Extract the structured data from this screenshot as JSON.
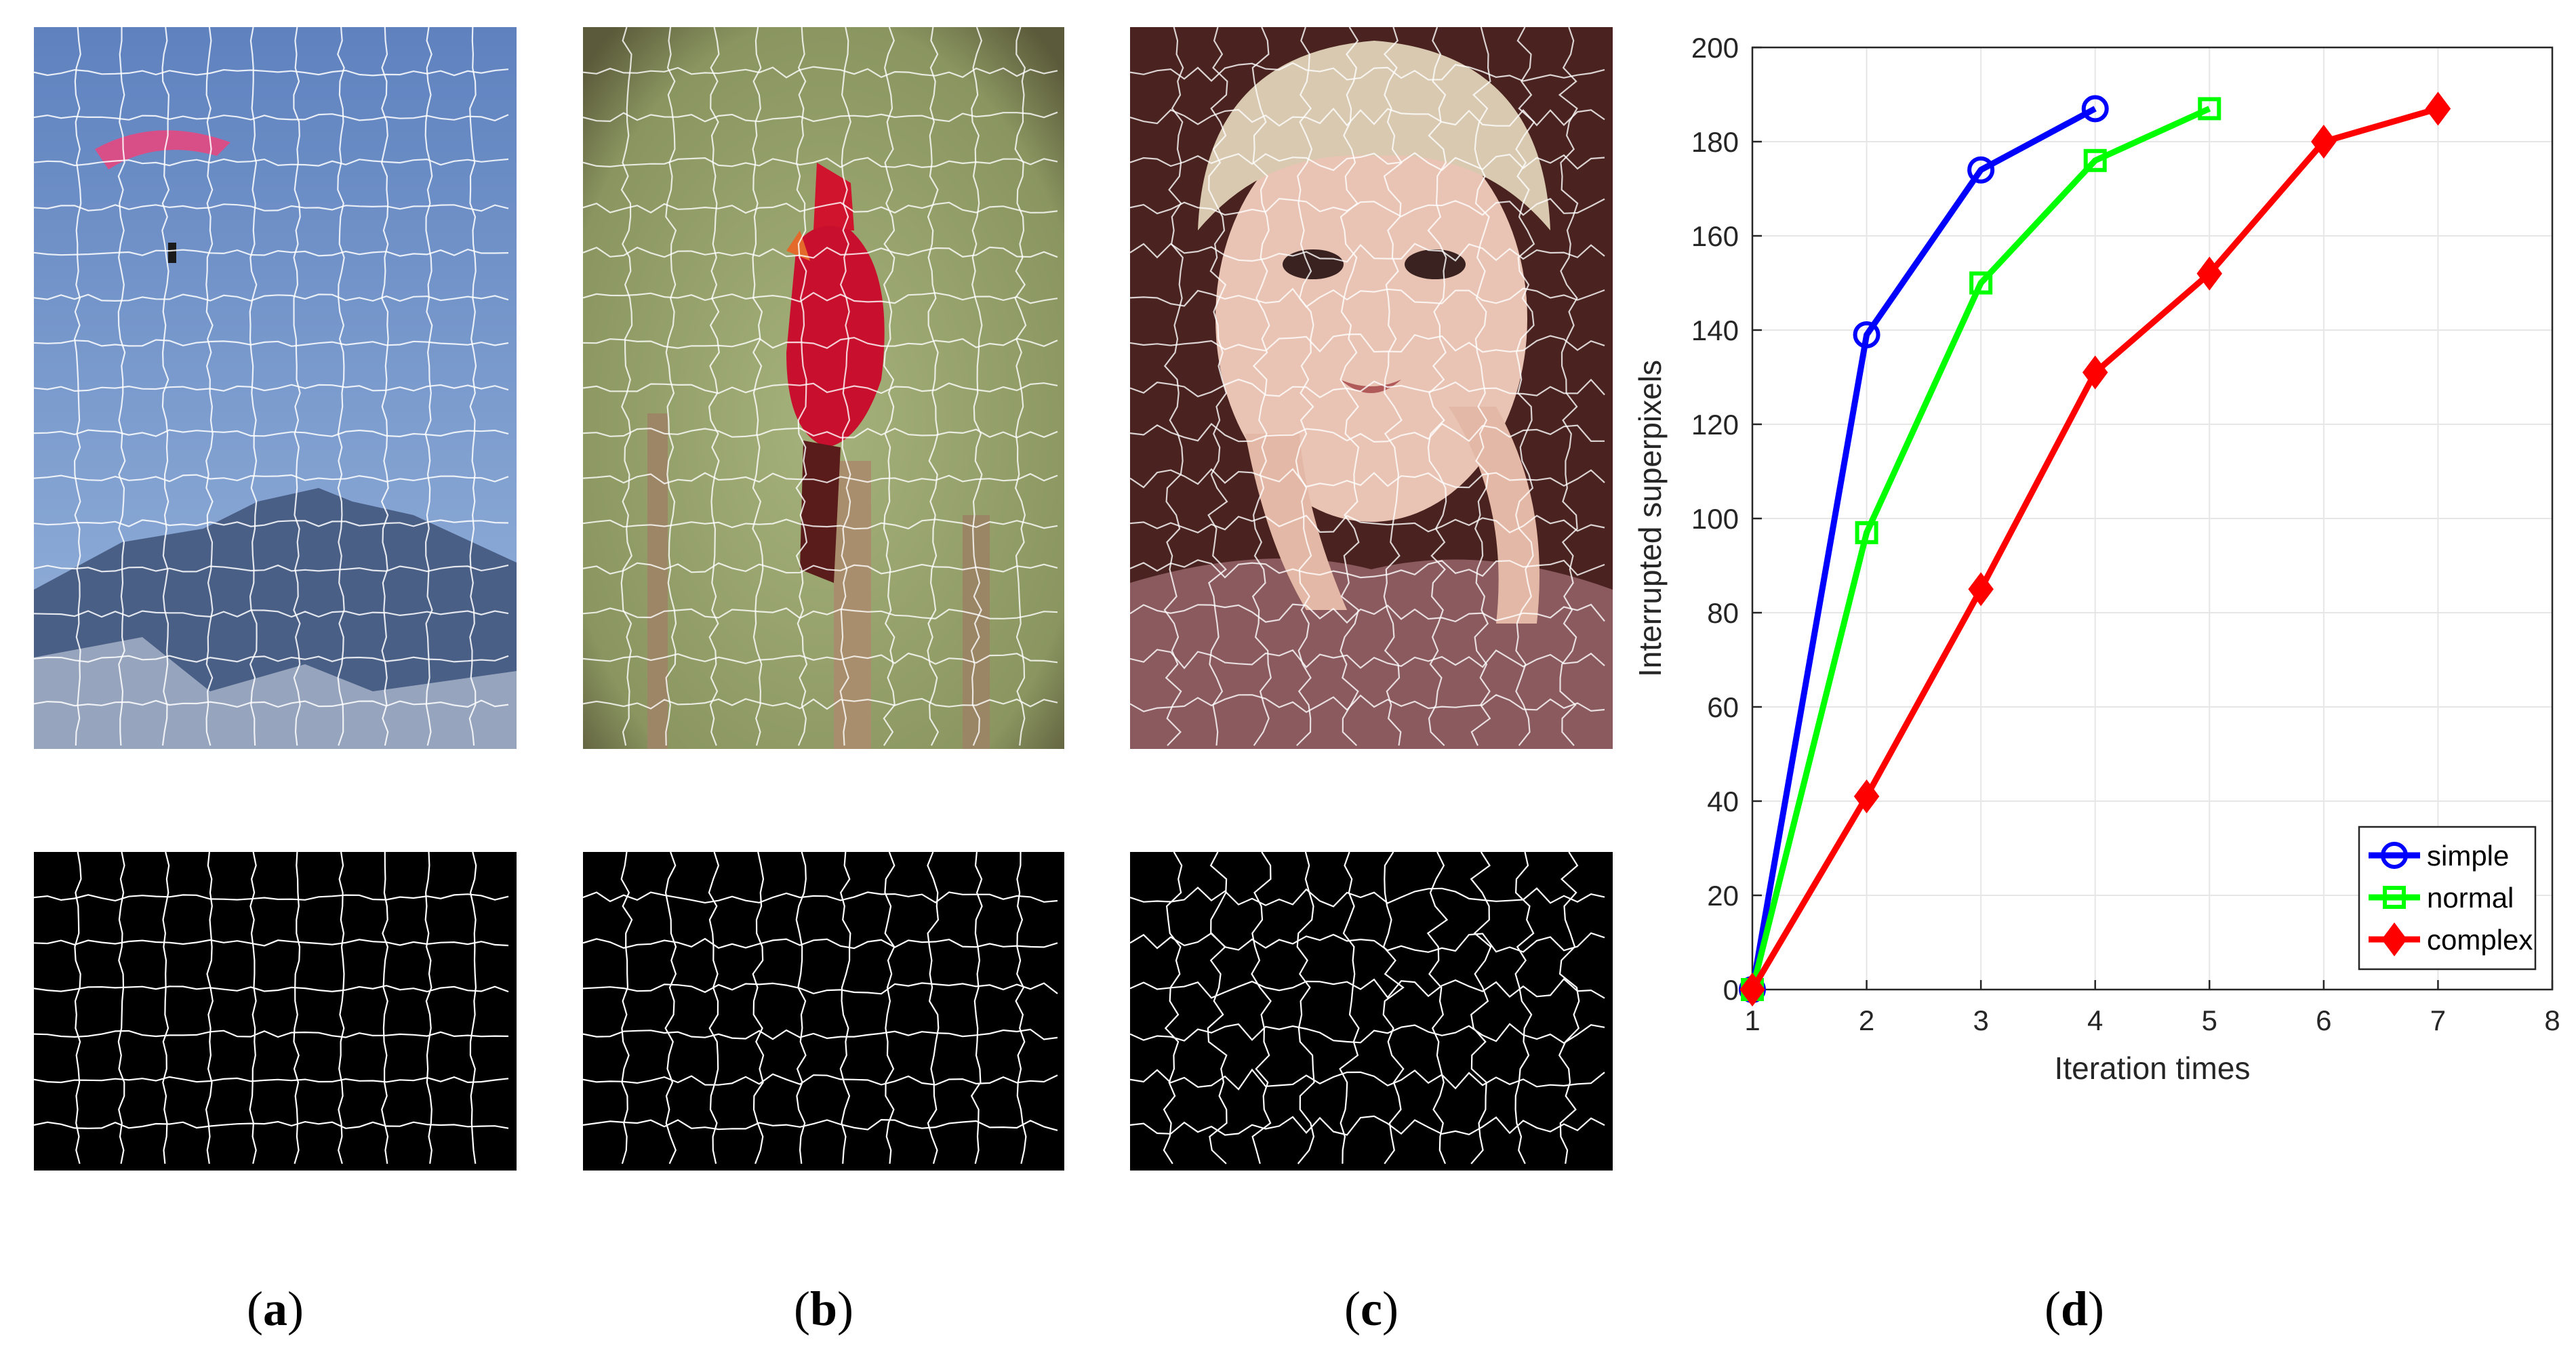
{
  "captions": [
    "a",
    "b",
    "c",
    "d"
  ],
  "colors": {
    "sky": "#6f8fc6",
    "mountain": "#4a5f86",
    "bird_bg": "#8e9a63",
    "bird": "#c8102e",
    "face_bg": "#5a2e2a",
    "skin": "#e9c4b4",
    "hat": "#d8c9b0",
    "contour": "#ffffff",
    "edge_bg": "#000000"
  },
  "chart_data": {
    "type": "line",
    "xlabel": "Iteration times",
    "ylabel": "Interrupted superpixels",
    "xlim": [
      1,
      8
    ],
    "ylim": [
      0,
      200
    ],
    "xticks": [
      1,
      2,
      3,
      4,
      5,
      6,
      7,
      8
    ],
    "yticks": [
      0,
      20,
      40,
      60,
      80,
      100,
      120,
      140,
      160,
      180,
      200
    ],
    "grid": true,
    "legend_position": "bottom-right",
    "series": [
      {
        "name": "simple",
        "color": "#0000ff",
        "marker": "circle",
        "x": [
          1,
          2,
          3,
          4
        ],
        "y": [
          0,
          139,
          174,
          187
        ]
      },
      {
        "name": "normal",
        "color": "#00ff00",
        "marker": "square",
        "x": [
          1,
          2,
          3,
          4,
          5
        ],
        "y": [
          0,
          97,
          150,
          176,
          187
        ]
      },
      {
        "name": "complex",
        "color": "#ff0000",
        "marker": "diamond",
        "x": [
          1,
          2,
          3,
          4,
          5,
          6,
          7
        ],
        "y": [
          0,
          41,
          85,
          131,
          152,
          180,
          187
        ]
      }
    ]
  }
}
